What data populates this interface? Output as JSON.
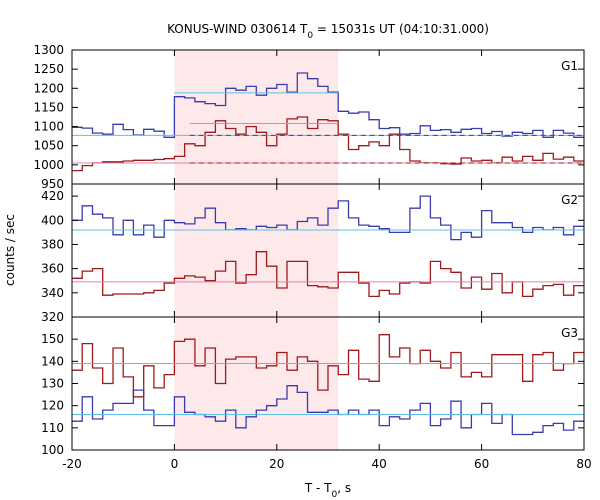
{
  "title": {
    "prefix": "KONUS-WIND 030614 T",
    "sub": "0",
    "suffix": " = 15031s UT (04:10:31.000)"
  },
  "xlabel": {
    "prefix": "T - T",
    "sub": "0",
    "suffix": ", s"
  },
  "ylabel": "counts / sec",
  "chart_data": [
    {
      "type": "line",
      "panel": "G1",
      "xlim": [
        -20,
        80
      ],
      "ylim": [
        950,
        1300
      ],
      "yticks": [
        950,
        1000,
        1050,
        1100,
        1150,
        1200,
        1250,
        1300
      ],
      "xticks": [
        -20,
        0,
        20,
        40,
        60,
        80
      ],
      "highlight_interval": [
        0,
        32
      ],
      "colors": {
        "upper": "#3b3bb0",
        "lower": "#9e1b1b",
        "upper_fit": "#5bc0eb",
        "lower_fit": "#e87fb0",
        "band": "#fde8ea"
      },
      "series": [
        {
          "role": "upper",
          "x": [
            -20,
            -18,
            -16,
            -14,
            -12,
            -10,
            -8,
            -6,
            -4,
            -2,
            0,
            2,
            4,
            6,
            8,
            10,
            12,
            14,
            16,
            18,
            20,
            22,
            24,
            26,
            28,
            30,
            32,
            34,
            36,
            38,
            40,
            42,
            44,
            46,
            48,
            50,
            52,
            54,
            56,
            58,
            60,
            62,
            64,
            66,
            68,
            70,
            72,
            74,
            76,
            78,
            80
          ],
          "values": [
            1098,
            1096,
            1083,
            1080,
            1106,
            1092,
            1078,
            1093,
            1088,
            1072,
            1178,
            1175,
            1165,
            1160,
            1155,
            1200,
            1195,
            1205,
            1182,
            1200,
            1210,
            1190,
            1240,
            1225,
            1205,
            1190,
            1140,
            1135,
            1138,
            1118,
            1095,
            1097,
            1080,
            1082,
            1102,
            1090,
            1092,
            1085,
            1093,
            1095,
            1082,
            1087,
            1075,
            1085,
            1082,
            1090,
            1072,
            1090,
            1083,
            1072,
            1075
          ]
        },
        {
          "role": "lower",
          "x": [
            -20,
            -18,
            -16,
            -14,
            -12,
            -10,
            -8,
            -6,
            -4,
            -2,
            0,
            2,
            4,
            6,
            8,
            10,
            12,
            14,
            16,
            18,
            20,
            22,
            24,
            26,
            28,
            30,
            32,
            34,
            36,
            38,
            40,
            42,
            44,
            46,
            48,
            50,
            52,
            54,
            56,
            58,
            60,
            62,
            64,
            66,
            68,
            70,
            72,
            74,
            76,
            78,
            80
          ],
          "values": [
            985,
            998,
            1005,
            1008,
            1008,
            1010,
            1012,
            1012,
            1014,
            1016,
            1022,
            1055,
            1050,
            1085,
            1115,
            1095,
            1080,
            1100,
            1085,
            1050,
            1080,
            1120,
            1125,
            1095,
            1118,
            1115,
            1080,
            1040,
            1050,
            1060,
            1050,
            1080,
            1040,
            1010,
            1005,
            1005,
            1003,
            1002,
            1018,
            1010,
            1012,
            1005,
            1020,
            1010,
            1022,
            1012,
            1030,
            1015,
            1020,
            1010,
            1012
          ]
        },
        {
          "role": "upper_fit",
          "segments": [
            [
              -20,
              32,
              1077
            ],
            [
              0,
              32,
              1188
            ],
            [
              32,
              80,
              1077
            ]
          ]
        },
        {
          "role": "lower_fit",
          "segments": [
            [
              -20,
              80,
              1005
            ],
            [
              3,
              32,
              1108
            ]
          ]
        },
        {
          "role": "upper_baseline_dashed",
          "segments": [
            [
              3,
              80,
              1077
            ]
          ]
        },
        {
          "role": "lower_baseline_dashed",
          "segments": [
            [
              3,
              80,
              1005
            ]
          ]
        }
      ]
    },
    {
      "type": "line",
      "panel": "G2",
      "xlim": [
        -20,
        80
      ],
      "ylim": [
        320,
        430
      ],
      "yticks": [
        320,
        340,
        360,
        380,
        400,
        420
      ],
      "xticks": [
        -20,
        0,
        20,
        40,
        60,
        80
      ],
      "highlight_interval": [
        0,
        32
      ],
      "series": [
        {
          "role": "upper",
          "x": [
            -20,
            -18,
            -16,
            -14,
            -12,
            -10,
            -8,
            -6,
            -4,
            -2,
            0,
            2,
            4,
            6,
            8,
            10,
            12,
            14,
            16,
            18,
            20,
            22,
            24,
            26,
            28,
            30,
            32,
            34,
            36,
            38,
            40,
            42,
            44,
            46,
            48,
            50,
            52,
            54,
            56,
            58,
            60,
            62,
            64,
            66,
            68,
            70,
            72,
            74,
            76,
            78,
            80
          ],
          "values": [
            400,
            412,
            405,
            402,
            388,
            400,
            388,
            396,
            386,
            400,
            398,
            397,
            402,
            410,
            398,
            392,
            393,
            392,
            395,
            394,
            396,
            392,
            399,
            402,
            396,
            410,
            416,
            402,
            396,
            395,
            393,
            390,
            390,
            410,
            420,
            402,
            396,
            384,
            390,
            386,
            408,
            398,
            398,
            394,
            390,
            394,
            392,
            394,
            388,
            395,
            396
          ]
        },
        {
          "role": "lower",
          "x": [
            -20,
            -18,
            -16,
            -14,
            -12,
            -10,
            -8,
            -6,
            -4,
            -2,
            0,
            2,
            4,
            6,
            8,
            10,
            12,
            14,
            16,
            18,
            20,
            22,
            24,
            26,
            28,
            30,
            32,
            34,
            36,
            38,
            40,
            42,
            44,
            46,
            48,
            50,
            52,
            54,
            56,
            58,
            60,
            62,
            64,
            66,
            68,
            70,
            72,
            74,
            76,
            78,
            80
          ],
          "values": [
            352,
            358,
            360,
            338,
            339,
            339,
            339,
            340,
            342,
            348,
            352,
            354,
            353,
            350,
            358,
            366,
            348,
            355,
            374,
            362,
            344,
            366,
            366,
            346,
            345,
            344,
            357,
            357,
            348,
            337,
            342,
            339,
            348,
            349,
            348,
            366,
            360,
            357,
            344,
            353,
            343,
            356,
            340,
            349,
            337,
            343,
            346,
            347,
            338,
            346,
            346
          ]
        },
        {
          "role": "upper_fit",
          "segments": [
            [
              -20,
              80,
              392
            ]
          ]
        },
        {
          "role": "lower_fit",
          "segments": [
            [
              -20,
              80,
              349
            ]
          ]
        }
      ]
    },
    {
      "type": "line",
      "panel": "G3",
      "xlim": [
        -20,
        80
      ],
      "ylim": [
        100,
        160
      ],
      "yticks": [
        100,
        110,
        120,
        130,
        140,
        150
      ],
      "xticks": [
        -20,
        0,
        20,
        40,
        60,
        80
      ],
      "highlight_interval": [
        0,
        32
      ],
      "series": [
        {
          "role": "upper",
          "x": [
            -20,
            -18,
            -16,
            -14,
            -12,
            -10,
            -8,
            -6,
            -4,
            -2,
            0,
            2,
            4,
            6,
            8,
            10,
            12,
            14,
            16,
            18,
            20,
            22,
            24,
            26,
            28,
            30,
            32,
            34,
            36,
            38,
            40,
            42,
            44,
            46,
            48,
            50,
            52,
            54,
            56,
            58,
            60,
            62,
            64,
            66,
            68,
            70,
            72,
            74,
            76,
            78,
            80
          ],
          "values": [
            113,
            124,
            114,
            118,
            121,
            121,
            127,
            118,
            111,
            111,
            124,
            117,
            116,
            115,
            113,
            118,
            110,
            115,
            118,
            120,
            123,
            129,
            126,
            117,
            117,
            118,
            116,
            118,
            116,
            118,
            111,
            115,
            114,
            118,
            121,
            111,
            114,
            122,
            110,
            116,
            121,
            112,
            116,
            107,
            107,
            108,
            111,
            112,
            109,
            113,
            118
          ]
        },
        {
          "role": "lower",
          "x": [
            -20,
            -18,
            -16,
            -14,
            -12,
            -10,
            -8,
            -6,
            -4,
            -2,
            0,
            2,
            4,
            6,
            8,
            10,
            12,
            14,
            16,
            18,
            20,
            22,
            24,
            26,
            28,
            30,
            32,
            34,
            36,
            38,
            40,
            42,
            44,
            46,
            48,
            50,
            52,
            54,
            56,
            58,
            60,
            62,
            64,
            66,
            68,
            70,
            72,
            74,
            76,
            78,
            80
          ],
          "values": [
            136,
            148,
            137,
            130,
            146,
            133,
            124,
            138,
            128,
            134,
            149,
            150,
            138,
            146,
            130,
            141,
            142,
            142,
            137,
            138,
            144,
            136,
            142,
            140,
            127,
            138,
            134,
            145,
            132,
            131,
            152,
            142,
            146,
            139,
            145,
            140,
            137,
            144,
            133,
            135,
            133,
            143,
            143,
            143,
            131,
            143,
            144,
            136,
            139,
            144,
            139
          ]
        },
        {
          "role": "upper_fit",
          "segments": [
            [
              -20,
              80,
              116
            ]
          ]
        },
        {
          "role": "lower_fit",
          "segments": [
            [
              -20,
              80,
              139
            ]
          ]
        }
      ]
    }
  ]
}
